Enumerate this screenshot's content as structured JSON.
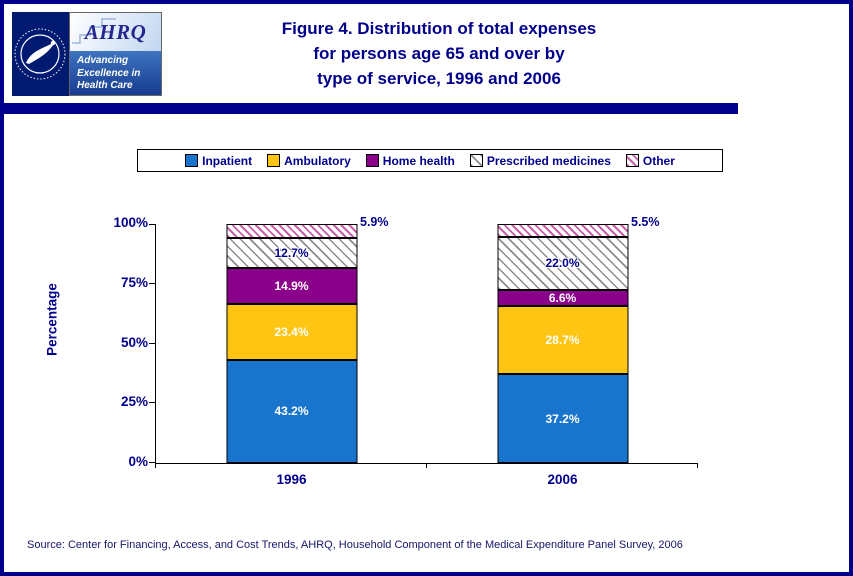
{
  "page": {
    "title_lines": [
      "Figure 4. Distribution of total expenses",
      "for persons age 65 and over by",
      "type of service, 1996 and 2006"
    ],
    "source": "Source: Center for Financing, Access, and Cost Trends, AHRQ, Household Component of the Medical Expenditure Panel Survey, 2006",
    "border_color": "#00008B",
    "text_color": "#00008B"
  },
  "logos": {
    "ahrq_acronym": "AHRQ",
    "ahrq_tagline_lines": [
      "Advancing",
      "Excellence in",
      "Health Care"
    ]
  },
  "chart_data": {
    "type": "bar",
    "stacked": true,
    "title": "Figure 4. Distribution of total expenses for persons age 65 and over by type of service, 1996 and 2006",
    "categories": [
      "1996",
      "2006"
    ],
    "series": [
      {
        "name": "Inpatient",
        "values": [
          43.2,
          37.2
        ],
        "color": "#1874CD",
        "pattern": "solid",
        "label_color": "#FFFFFF"
      },
      {
        "name": "Ambulatory",
        "values": [
          23.4,
          28.7
        ],
        "color": "#FFC513",
        "pattern": "solid",
        "label_color": "#FFFFFF"
      },
      {
        "name": "Home health",
        "values": [
          14.9,
          6.6
        ],
        "color": "#8B008B",
        "pattern": "solid",
        "label_color": "#FFFFFF"
      },
      {
        "name": "Prescribed medicines",
        "values": [
          12.7,
          22.0
        ],
        "color": "#FFFFFF",
        "pattern": "hatch-gray",
        "label_color": "#00008B"
      },
      {
        "name": "Other",
        "values": [
          5.9,
          5.5
        ],
        "color": "#FFFFFF",
        "pattern": "hatch-pink",
        "label_color": "#00008B",
        "label_outside": true
      }
    ],
    "ylabel": "Percentage",
    "yticks": [
      "0%",
      "25%",
      "50%",
      "75%",
      "100%"
    ],
    "ylim": [
      0,
      100
    ],
    "legend_position": "top",
    "value_label_format": "0.0%"
  }
}
